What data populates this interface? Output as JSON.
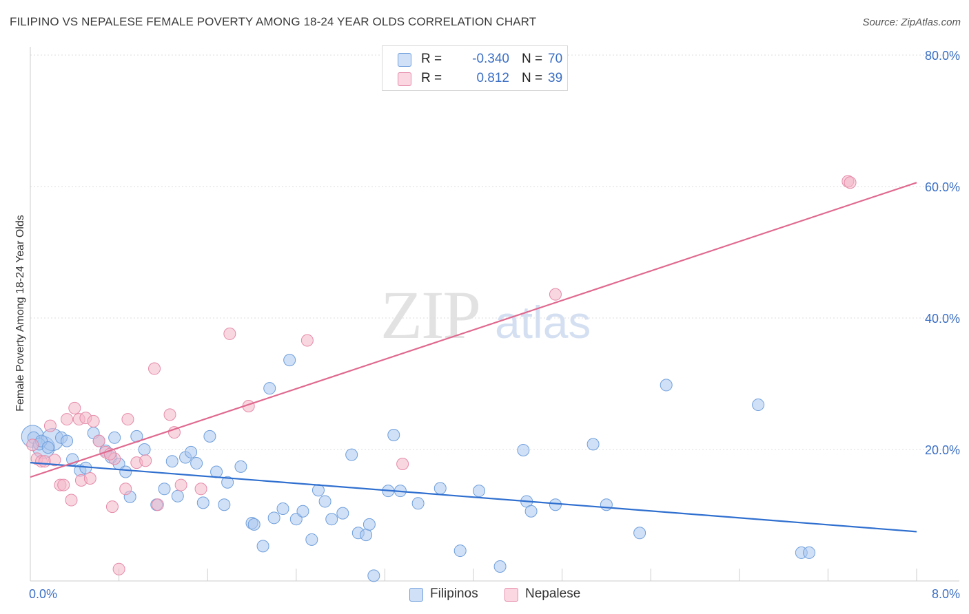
{
  "title": "FILIPINO VS NEPALESE FEMALE POVERTY AMONG 18-24 YEAR OLDS CORRELATION CHART",
  "source": "Source: ZipAtlas.com",
  "watermark": {
    "zip": "ZIP",
    "atlas": "atlas"
  },
  "legend": {
    "rows": [
      {
        "r_label": "R =",
        "r_value": "-0.340",
        "n_label": "N =",
        "n_value": "70",
        "color": "#a9c7ef"
      },
      {
        "r_label": "R =",
        "r_value": "0.812",
        "n_label": "N =",
        "n_value": "39",
        "color": "#f4b6c9"
      }
    ]
  },
  "bottom_legend": [
    {
      "label": "Filipinos",
      "color": "#a9c7ef"
    },
    {
      "label": "Nepalese",
      "color": "#f4b6c9"
    }
  ],
  "chart_data": {
    "type": "scatter",
    "title": "FILIPINO VS NEPALESE FEMALE POVERTY AMONG 18-24 YEAR OLDS CORRELATION CHART",
    "xlabel": "",
    "ylabel": "Female Poverty Among 18-24 Year Olds",
    "xlim": [
      0,
      8
    ],
    "ylim": [
      0,
      80
    ],
    "x_tick_labels": [
      "0.0%",
      "8.0%"
    ],
    "y_ticks": [
      20,
      40,
      60,
      80
    ],
    "y_tick_labels": [
      "20.0%",
      "40.0%",
      "60.0%",
      "80.0%"
    ],
    "grid": true,
    "legend_position": "top-center",
    "series": [
      {
        "name": "Filipinos",
        "color": "#a9c7ef",
        "stroke": "#6f9fdc",
        "trend": {
          "x": [
            0,
            8
          ],
          "y": [
            18.0,
            7.5
          ],
          "color": "#2f6fcf"
        },
        "points": [
          [
            0.03,
            21.8
          ],
          [
            0.08,
            20.8
          ],
          [
            0.1,
            21.3
          ],
          [
            0.16,
            20.3
          ],
          [
            0.28,
            21.8
          ],
          [
            0.33,
            21.3
          ],
          [
            0.38,
            18.5
          ],
          [
            0.45,
            16.8
          ],
          [
            0.5,
            17.2
          ],
          [
            0.57,
            22.5
          ],
          [
            0.62,
            21.3
          ],
          [
            0.68,
            19.8
          ],
          [
            0.73,
            18.8
          ],
          [
            0.76,
            21.8
          ],
          [
            0.8,
            17.8
          ],
          [
            0.86,
            16.6
          ],
          [
            0.9,
            12.8
          ],
          [
            1.03,
            20.0
          ],
          [
            0.96,
            22.0
          ],
          [
            1.14,
            11.6
          ],
          [
            1.21,
            14.0
          ],
          [
            1.28,
            18.2
          ],
          [
            1.33,
            12.9
          ],
          [
            1.4,
            18.8
          ],
          [
            1.45,
            19.6
          ],
          [
            1.5,
            17.9
          ],
          [
            1.56,
            11.9
          ],
          [
            1.62,
            22.0
          ],
          [
            1.68,
            16.6
          ],
          [
            1.75,
            11.6
          ],
          [
            1.78,
            15.0
          ],
          [
            1.9,
            17.4
          ],
          [
            2.0,
            8.8
          ],
          [
            2.02,
            8.6
          ],
          [
            2.1,
            5.3
          ],
          [
            2.16,
            29.3
          ],
          [
            2.2,
            9.6
          ],
          [
            2.28,
            11.0
          ],
          [
            2.34,
            33.6
          ],
          [
            2.4,
            9.4
          ],
          [
            2.46,
            10.6
          ],
          [
            2.54,
            6.3
          ],
          [
            2.6,
            13.8
          ],
          [
            2.66,
            12.1
          ],
          [
            2.72,
            9.4
          ],
          [
            2.82,
            10.3
          ],
          [
            2.9,
            19.2
          ],
          [
            2.96,
            7.3
          ],
          [
            3.03,
            7.0
          ],
          [
            3.06,
            8.6
          ],
          [
            3.1,
            0.8
          ],
          [
            3.23,
            13.7
          ],
          [
            3.28,
            22.2
          ],
          [
            3.34,
            13.7
          ],
          [
            3.5,
            11.8
          ],
          [
            3.7,
            14.1
          ],
          [
            3.88,
            4.6
          ],
          [
            4.05,
            13.7
          ],
          [
            4.24,
            2.2
          ],
          [
            4.45,
            19.9
          ],
          [
            4.48,
            12.1
          ],
          [
            4.52,
            10.6
          ],
          [
            4.74,
            11.6
          ],
          [
            5.08,
            20.8
          ],
          [
            5.2,
            11.6
          ],
          [
            5.5,
            7.3
          ],
          [
            5.74,
            29.8
          ],
          [
            6.57,
            26.8
          ],
          [
            6.96,
            4.3
          ],
          [
            7.03,
            4.3
          ]
        ],
        "large_points": [
          [
            0.02,
            22.0
          ],
          [
            0.12,
            20.3
          ],
          [
            0.2,
            21.5
          ]
        ]
      },
      {
        "name": "Nepalese",
        "color": "#f4b6c9",
        "stroke": "#e58aa8",
        "trend": {
          "x": [
            0,
            8
          ],
          "y": [
            15.8,
            60.6
          ],
          "color": "#e0698f"
        },
        "points": [
          [
            0.02,
            20.7
          ],
          [
            0.06,
            18.6
          ],
          [
            0.1,
            18.2
          ],
          [
            0.13,
            18.2
          ],
          [
            0.18,
            23.6
          ],
          [
            0.22,
            18.4
          ],
          [
            0.27,
            14.6
          ],
          [
            0.3,
            14.6
          ],
          [
            0.33,
            24.6
          ],
          [
            0.37,
            12.3
          ],
          [
            0.4,
            26.3
          ],
          [
            0.44,
            24.6
          ],
          [
            0.46,
            15.3
          ],
          [
            0.5,
            24.8
          ],
          [
            0.54,
            15.6
          ],
          [
            0.57,
            24.3
          ],
          [
            0.62,
            21.3
          ],
          [
            0.68,
            19.6
          ],
          [
            0.74,
            11.3
          ],
          [
            0.76,
            18.6
          ],
          [
            0.8,
            1.8
          ],
          [
            0.86,
            14.0
          ],
          [
            0.88,
            24.6
          ],
          [
            0.96,
            18.0
          ],
          [
            1.04,
            18.3
          ],
          [
            1.12,
            32.3
          ],
          [
            1.15,
            11.6
          ],
          [
            1.26,
            25.3
          ],
          [
            1.3,
            22.6
          ],
          [
            1.36,
            14.6
          ],
          [
            1.54,
            14.0
          ],
          [
            1.8,
            37.6
          ],
          [
            1.97,
            26.6
          ],
          [
            2.5,
            36.6
          ],
          [
            3.36,
            17.8
          ],
          [
            4.74,
            43.6
          ],
          [
            7.38,
            60.8
          ],
          [
            7.4,
            60.6
          ],
          [
            0.72,
            19.3
          ]
        ]
      }
    ]
  }
}
